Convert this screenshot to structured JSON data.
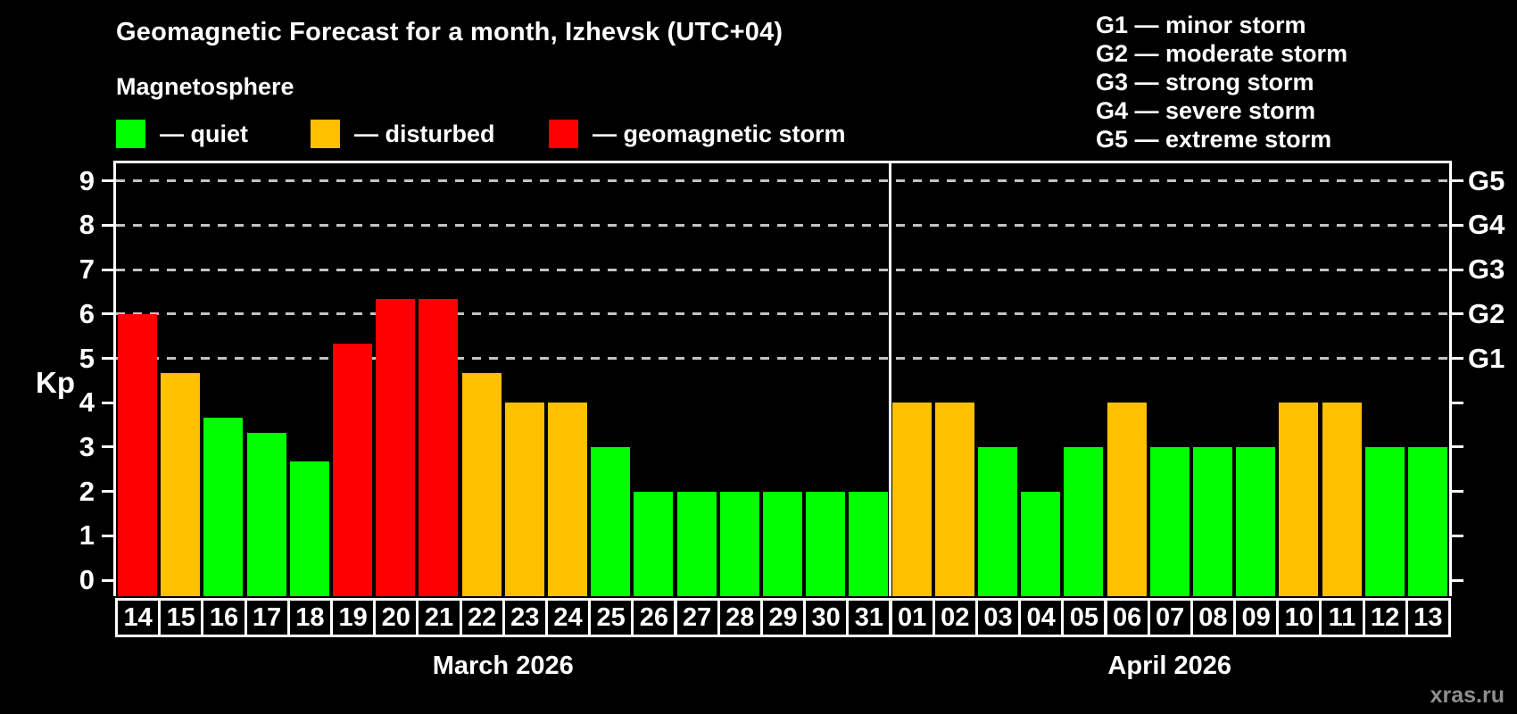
{
  "header": {
    "title": "Geomagnetic Forecast for a month, Izhevsk (UTC+04)",
    "subtitle": "Magnetosphere",
    "legend": [
      {
        "key": "quiet",
        "label": "— quiet",
        "color": "#00ff00"
      },
      {
        "key": "disturbed",
        "label": "— disturbed",
        "color": "#ffc000"
      },
      {
        "key": "storm",
        "label": "— geomagnetic storm",
        "color": "#ff0000"
      }
    ],
    "g_legend": [
      "G1 — minor storm",
      "G2 — moderate storm",
      "G3 — strong storm",
      "G4 — severe storm",
      "G5 — extreme storm"
    ]
  },
  "chart_data": {
    "type": "bar",
    "ylabel": "Kp",
    "ylim": [
      0,
      9
    ],
    "yticks": [
      0,
      1,
      2,
      3,
      4,
      5,
      6,
      7,
      8,
      9
    ],
    "grid_levels": [
      5,
      6,
      7,
      8,
      9
    ],
    "grid_style": "dashed",
    "right_axis_labels": [
      {
        "kp": 9,
        "label": "G5"
      },
      {
        "kp": 8,
        "label": "G4"
      },
      {
        "kp": 7,
        "label": "G3"
      },
      {
        "kp": 6,
        "label": "G2"
      },
      {
        "kp": 5,
        "label": "G1"
      }
    ],
    "colors": {
      "quiet": "#00ff00",
      "disturbed": "#ffc000",
      "storm": "#ff0000"
    },
    "months": [
      {
        "label": "March 2026",
        "days": [
          {
            "day": "14",
            "kp": 6.0,
            "status": "storm"
          },
          {
            "day": "15",
            "kp": 4.67,
            "status": "disturbed"
          },
          {
            "day": "16",
            "kp": 3.67,
            "status": "quiet"
          },
          {
            "day": "17",
            "kp": 3.33,
            "status": "quiet"
          },
          {
            "day": "18",
            "kp": 2.67,
            "status": "quiet"
          },
          {
            "day": "19",
            "kp": 5.33,
            "status": "storm"
          },
          {
            "day": "20",
            "kp": 6.33,
            "status": "storm"
          },
          {
            "day": "21",
            "kp": 6.33,
            "status": "storm"
          },
          {
            "day": "22",
            "kp": 4.67,
            "status": "disturbed"
          },
          {
            "day": "23",
            "kp": 4.0,
            "status": "disturbed"
          },
          {
            "day": "24",
            "kp": 4.0,
            "status": "disturbed"
          },
          {
            "day": "25",
            "kp": 3.0,
            "status": "quiet"
          },
          {
            "day": "26",
            "kp": 2.0,
            "status": "quiet"
          },
          {
            "day": "27",
            "kp": 2.0,
            "status": "quiet"
          },
          {
            "day": "28",
            "kp": 2.0,
            "status": "quiet"
          },
          {
            "day": "29",
            "kp": 2.0,
            "status": "quiet"
          },
          {
            "day": "30",
            "kp": 2.0,
            "status": "quiet"
          },
          {
            "day": "31",
            "kp": 2.0,
            "status": "quiet"
          }
        ]
      },
      {
        "label": "April 2026",
        "days": [
          {
            "day": "01",
            "kp": 4.0,
            "status": "disturbed"
          },
          {
            "day": "02",
            "kp": 4.0,
            "status": "disturbed"
          },
          {
            "day": "03",
            "kp": 3.0,
            "status": "quiet"
          },
          {
            "day": "04",
            "kp": 2.0,
            "status": "quiet"
          },
          {
            "day": "05",
            "kp": 3.0,
            "status": "quiet"
          },
          {
            "day": "06",
            "kp": 4.0,
            "status": "disturbed"
          },
          {
            "day": "07",
            "kp": 3.0,
            "status": "quiet"
          },
          {
            "day": "08",
            "kp": 3.0,
            "status": "quiet"
          },
          {
            "day": "09",
            "kp": 3.0,
            "status": "quiet"
          },
          {
            "day": "10",
            "kp": 4.0,
            "status": "disturbed"
          },
          {
            "day": "11",
            "kp": 4.0,
            "status": "disturbed"
          },
          {
            "day": "12",
            "kp": 3.0,
            "status": "quiet"
          },
          {
            "day": "13",
            "kp": 3.0,
            "status": "quiet"
          }
        ]
      }
    ]
  },
  "watermark": "xras.ru"
}
